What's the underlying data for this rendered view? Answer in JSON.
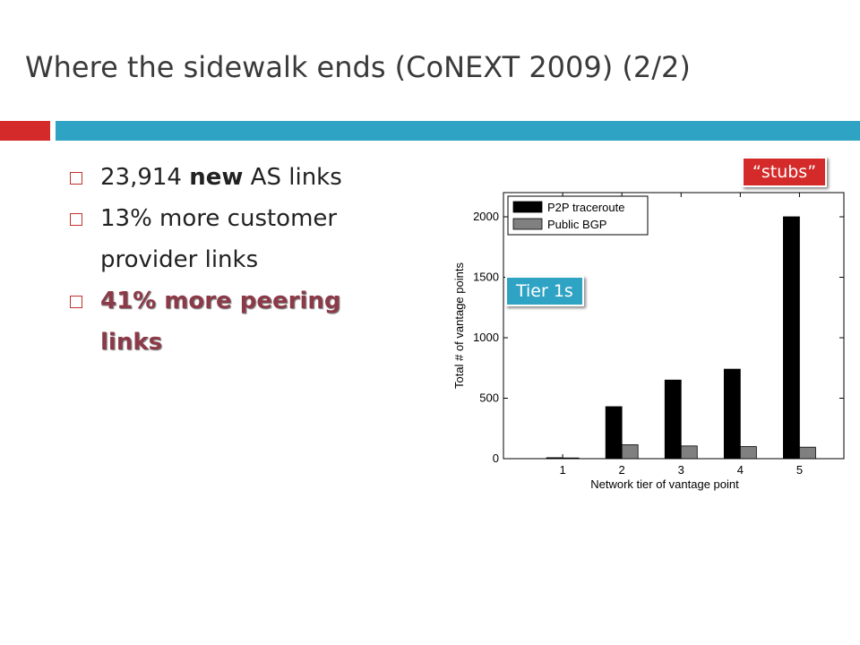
{
  "slide": {
    "title": "Where the sidewalk ends (CoNEXT 2009) (2/2)",
    "accent_red": "#d42a2a",
    "accent_teal": "#2fa3c3",
    "highlight_color": "#8c3a48"
  },
  "bullets": [
    {
      "pre": "23,914 ",
      "bold": "new",
      "post": " AS links"
    },
    {
      "text": "13% more customer provider links"
    },
    {
      "text": "41% more peering links"
    }
  ],
  "callouts": {
    "stubs": "“stubs”",
    "tier1": "Tier 1s"
  },
  "chart_data": {
    "type": "bar",
    "categories": [
      "1",
      "2",
      "3",
      "4",
      "5"
    ],
    "series": [
      {
        "name": "P2P traceroute",
        "values": [
          8,
          430,
          650,
          740,
          2000
        ],
        "color": "#000000"
      },
      {
        "name": "Public BGP",
        "values": [
          6,
          115,
          105,
          100,
          95
        ],
        "color": "#808080"
      }
    ],
    "xlabel": "Network tier of vantage point",
    "ylabel": "Total # of vantage points",
    "ylim": [
      0,
      2200
    ],
    "yticks": [
      "0",
      "500",
      "1000",
      "1500",
      "2000"
    ],
    "legend_position": "top-left",
    "grid": false
  }
}
